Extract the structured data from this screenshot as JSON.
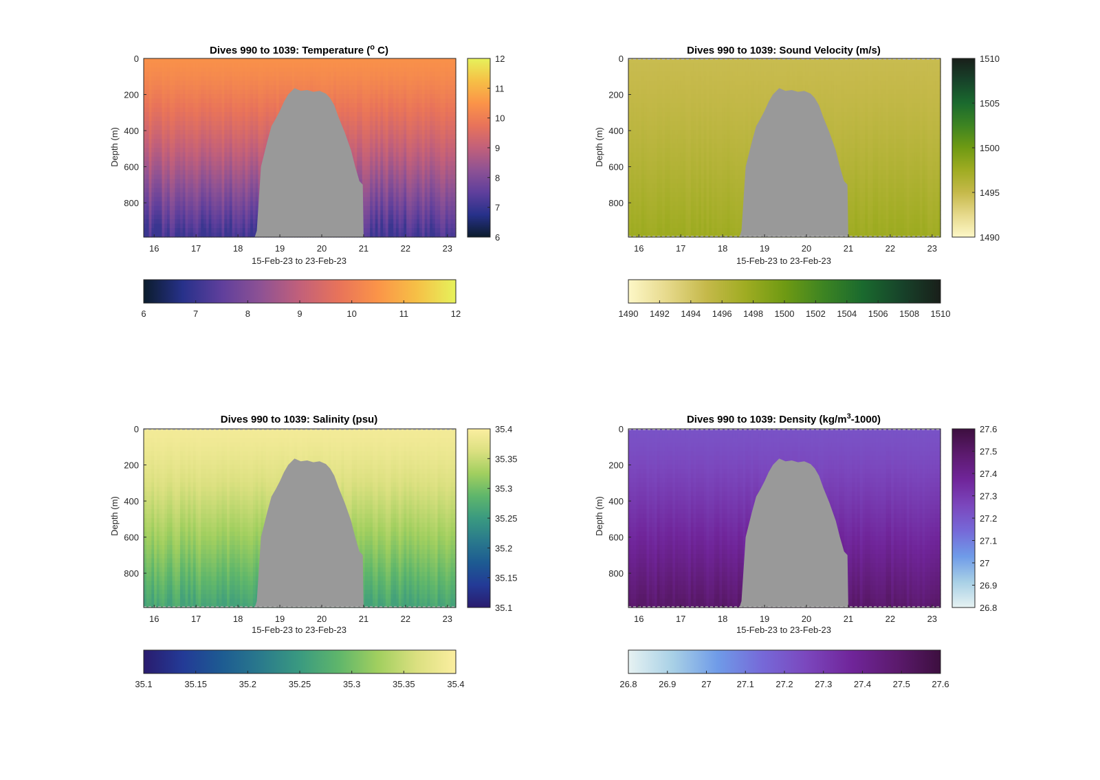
{
  "chart_data": [
    {
      "type": "heatmap",
      "title": "Dives 990 to 1039: Temperature (",
      "title_sup": "o",
      "title_suffix": " C)",
      "xlabel": "15-Feb-23 to 23-Feb-23",
      "ylabel": "Depth (m)",
      "xlim": [
        15.75,
        23.2
      ],
      "ylim": [
        0,
        990
      ],
      "xticks": [
        "16",
        "17",
        "18",
        "19",
        "20",
        "21",
        "22",
        "23"
      ],
      "yticks": [
        "0",
        "200",
        "400",
        "600",
        "800"
      ],
      "clim": [
        6,
        12
      ],
      "colorbar_ticks": [
        "6",
        "7",
        "8",
        "9",
        "10",
        "11",
        "12"
      ],
      "h_colorbar_ticks": [
        "6",
        "7",
        "8",
        "9",
        "10",
        "11",
        "12"
      ],
      "colormap": [
        "#0b1c2c",
        "#27318a",
        "#5f3f9c",
        "#8e5294",
        "#c2607a",
        "#e8735a",
        "#fb9448",
        "#f6c046",
        "#e6f25b"
      ],
      "surface_value": 10.4,
      "deep_value": 7.0,
      "gap_fill": "#999999",
      "dashed_edges": false
    },
    {
      "type": "heatmap",
      "title": "Dives 990 to 1039: Sound Velocity (m/s)",
      "xlabel": "15-Feb-23 to 23-Feb-23",
      "ylabel": "Depth (m)",
      "xlim": [
        15.75,
        23.2
      ],
      "ylim": [
        0,
        990
      ],
      "xticks": [
        "16",
        "17",
        "18",
        "19",
        "20",
        "21",
        "22",
        "23"
      ],
      "yticks": [
        "0",
        "200",
        "400",
        "600",
        "800"
      ],
      "clim": [
        1490,
        1510
      ],
      "colorbar_ticks": [
        "1490",
        "1495",
        "1500",
        "1505",
        "1510"
      ],
      "h_colorbar_ticks": [
        "1490",
        "1492",
        "1494",
        "1496",
        "1498",
        "1500",
        "1502",
        "1504",
        "1506",
        "1508",
        "1510"
      ],
      "colormap": [
        "#fdf7c7",
        "#e6d98b",
        "#c5b94a",
        "#9fac22",
        "#6f9a13",
        "#3d8422",
        "#1a6a2e",
        "#17432a",
        "#191f1a"
      ],
      "surface_value": 1494.8,
      "deep_value": 1497.6,
      "gap_fill": "#999999",
      "dashed_edges": true
    },
    {
      "type": "heatmap",
      "title": "Dives 990 to 1039: Salinity (psu)",
      "xlabel": "15-Feb-23 to 23-Feb-23",
      "ylabel": "Depth (m)",
      "xlim": [
        15.75,
        23.2
      ],
      "ylim": [
        0,
        990
      ],
      "xticks": [
        "16",
        "17",
        "18",
        "19",
        "20",
        "21",
        "22",
        "23"
      ],
      "yticks": [
        "0",
        "200",
        "400",
        "600",
        "800"
      ],
      "clim": [
        35.1,
        35.4
      ],
      "colorbar_ticks": [
        "35.1",
        "35.15",
        "35.2",
        "35.25",
        "35.3",
        "35.35",
        "35.4"
      ],
      "h_colorbar_ticks": [
        "35.1",
        "35.15",
        "35.2",
        "35.25",
        "35.3",
        "35.35",
        "35.4"
      ],
      "colormap": [
        "#2a1c6e",
        "#233a96",
        "#1d5b92",
        "#2a7a8c",
        "#3a9a80",
        "#5fb66b",
        "#a1cf5f",
        "#dbe080",
        "#fbeea0"
      ],
      "surface_value": 35.39,
      "deep_value": 35.26,
      "gap_fill": "#999999",
      "dashed_edges": true
    },
    {
      "type": "heatmap",
      "title": "Dives 990 to 1039: Density (kg/m",
      "title_sup": "3",
      "title_suffix": "-1000)",
      "xlabel": "15-Feb-23 to 23-Feb-23",
      "ylabel": "Depth (m)",
      "xlim": [
        15.75,
        23.2
      ],
      "ylim": [
        0,
        990
      ],
      "xticks": [
        "16",
        "17",
        "18",
        "19",
        "20",
        "21",
        "22",
        "23"
      ],
      "yticks": [
        "0",
        "200",
        "400",
        "600",
        "800"
      ],
      "clim": [
        26.8,
        27.6
      ],
      "colorbar_ticks": [
        "26.8",
        "26.9",
        "27",
        "27.1",
        "27.2",
        "27.3",
        "27.4",
        "27.5",
        "27.6"
      ],
      "h_colorbar_ticks": [
        "26.8",
        "26.9",
        "27",
        "27.1",
        "27.2",
        "27.3",
        "27.4",
        "27.5",
        "27.6"
      ],
      "colormap": [
        "#e6f2f2",
        "#a8d0e6",
        "#6f9be8",
        "#7669d8",
        "#7b47bd",
        "#70259a",
        "#5c1a6e",
        "#3d0f3f"
      ],
      "surface_value": 27.22,
      "deep_value": 27.5,
      "gap_fill": "#999999",
      "dashed_edges": true
    }
  ]
}
